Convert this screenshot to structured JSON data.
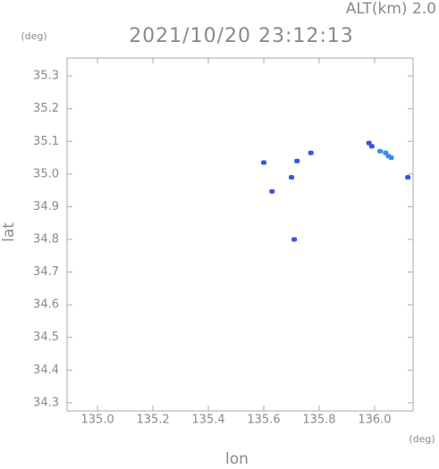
{
  "chart_data": {
    "type": "scatter",
    "title": "2021/10/20 23:12:13",
    "altitude_label": "ALT(km) 2.0",
    "y_unit": "(deg)",
    "x_unit": "(deg)",
    "x_label": "lon",
    "y_label": "lat",
    "xlim": [
      134.89,
      136.139
    ],
    "ylim": [
      34.275,
      35.355
    ],
    "xticks": [
      {
        "value": 135.0,
        "label": "135.0"
      },
      {
        "value": 135.2,
        "label": "135.2"
      },
      {
        "value": 135.4,
        "label": "135.4"
      },
      {
        "value": 135.6,
        "label": "135.6"
      },
      {
        "value": 135.8,
        "label": "135.8"
      },
      {
        "value": 136.0,
        "label": "136.0"
      }
    ],
    "yticks": [
      {
        "value": 34.3,
        "label": "34.3"
      },
      {
        "value": 34.4,
        "label": "34.4"
      },
      {
        "value": 34.5,
        "label": "34.5"
      },
      {
        "value": 34.6,
        "label": "34.6"
      },
      {
        "value": 34.7,
        "label": "34.7"
      },
      {
        "value": 34.8,
        "label": "34.8"
      },
      {
        "value": 34.9,
        "label": "34.9"
      },
      {
        "value": 35.0,
        "label": "35.0"
      },
      {
        "value": 35.1,
        "label": "35.1"
      },
      {
        "value": 35.2,
        "label": "35.2"
      },
      {
        "value": 35.3,
        "label": "35.3"
      }
    ],
    "series": [
      {
        "color": "#3a52e8",
        "x": [
          135.98,
          135.99,
          136.12,
          135.63,
          135.7,
          135.72,
          135.6,
          135.71,
          135.77
        ],
        "values": [
          35.095,
          35.085,
          34.99,
          34.947,
          34.99,
          35.04,
          35.035,
          34.8,
          35.065
        ]
      },
      {
        "color": "#3d8cf0",
        "x": [
          136.02,
          136.04,
          136.05,
          136.06
        ],
        "values": [
          35.07,
          35.065,
          35.055,
          35.05
        ]
      }
    ]
  }
}
